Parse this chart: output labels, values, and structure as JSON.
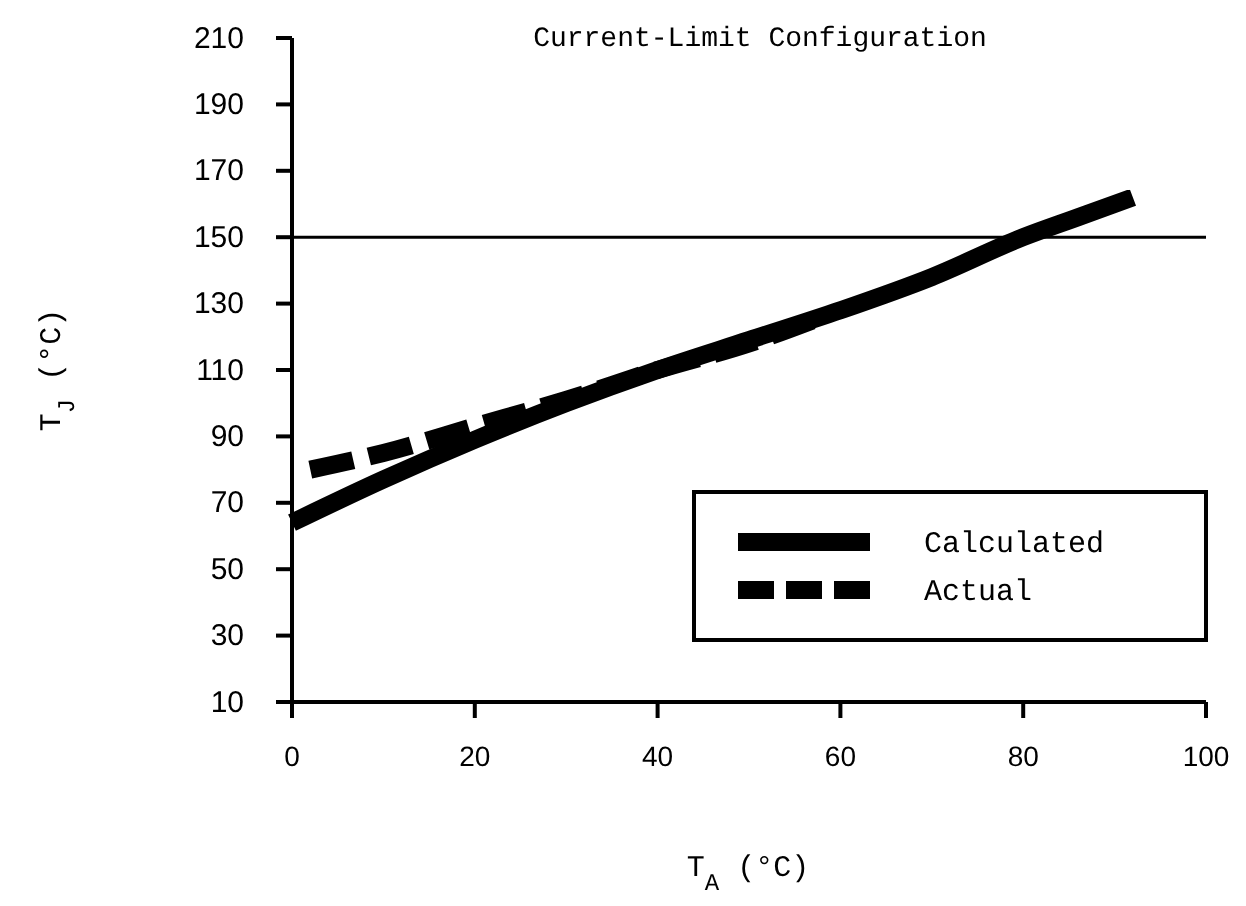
{
  "chart_data": {
    "type": "line",
    "title": "Current-Limit Configuration",
    "xlabel": "T$_{A}$ (°C)",
    "ylabel": "T$_{J}$ (°C)",
    "xlim": [
      0,
      100
    ],
    "xticks": [
      0,
      20,
      40,
      60,
      80,
      100
    ],
    "ylim": [
      10,
      210
    ],
    "yticks": [
      10,
      30,
      50,
      70,
      90,
      110,
      130,
      150,
      170,
      190,
      210
    ],
    "grid": false,
    "legend": "right",
    "ref_lines": [
      {
        "axis": "y",
        "value": 150
      }
    ],
    "series": [
      {
        "name": "Calculated",
        "color": "#000000",
        "line_style": "solid",
        "x": [
          0,
          10,
          20,
          30,
          40,
          50,
          60,
          70,
          80,
          86,
          92
        ],
        "values": [
          64,
          77,
          89,
          100,
          110,
          119,
          128,
          138,
          150,
          156,
          162
        ]
      },
      {
        "name": "Actual",
        "color": "#000000",
        "line_style": "dashed",
        "x": [
          2,
          10,
          20,
          30,
          40,
          50,
          58
        ],
        "values": [
          80,
          85,
          93,
          101,
          110,
          118,
          126
        ]
      }
    ]
  }
}
